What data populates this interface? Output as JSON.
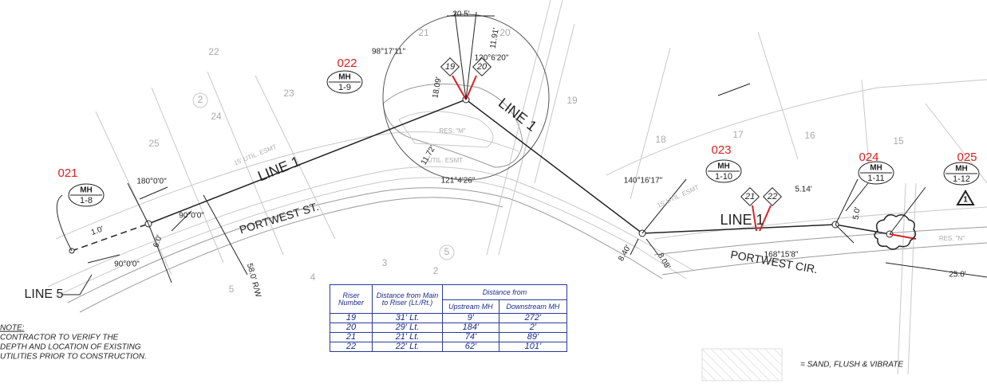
{
  "manholes": [
    {
      "id": "021",
      "type": "MH",
      "label": "1-8"
    },
    {
      "id": "022",
      "type": "MH",
      "label": "1-9"
    },
    {
      "id": "023",
      "type": "MH",
      "label": "1-10"
    },
    {
      "id": "024",
      "type": "MH",
      "label": "1-11"
    },
    {
      "id": "025",
      "type": "MH",
      "label": "1-12"
    }
  ],
  "line_labels": [
    "LINE 1",
    "LINE 1",
    "LINE 1",
    "LINE 5"
  ],
  "streets": [
    "PORTWEST ST.",
    "PORTWEST CIR."
  ],
  "dimensions": [
    "20.5'",
    "98°17'11\"",
    "120°6'20\"",
    "11.91'",
    "18.09'",
    "11.72'",
    "121°4'26\"",
    "180°0'0\"",
    "90°0'0\"",
    "90°0'0\"",
    "1.0'",
    "6.0'",
    "58.0' R/W",
    "140°16'17\"",
    "5.14'",
    "5.0'",
    "168°15'8\"",
    "25.0'",
    "8.40'",
    "8.08'"
  ],
  "risers": [
    "19",
    "20",
    "21",
    "22"
  ],
  "lots": [
    "22",
    "21",
    "20",
    "19",
    "23",
    "24",
    "25",
    "2",
    "18",
    "17",
    "16",
    "15",
    "3",
    "2",
    "4",
    "5",
    "5"
  ],
  "easements": [
    "15' UTIL. ESMT",
    "UTIL. ESMT",
    "RES. \"M\"",
    "RES. \"N\"",
    "15' UTIL. ESMT"
  ],
  "revision": "1",
  "note": {
    "title": "NOTE:",
    "lines": [
      "CONTRACTOR TO VERIFY THE",
      "DEPTH AND LOCATION OF EXISTING",
      "UTILITIES PRIOR TO CONSTRUCTION."
    ]
  },
  "legend": "= SAND, FLUSH & VIBRATE",
  "table": {
    "headers": {
      "riser": "Riser Number",
      "main": "Distance from Main to Riser (Lt./Rt.)",
      "from": "Distance from",
      "up": "Upstream MH",
      "down": "Downstream MH"
    },
    "rows": [
      [
        "19",
        "31' Lt.",
        "9'",
        "272'"
      ],
      [
        "20",
        "29' Lt.",
        "184'",
        "2'"
      ],
      [
        "21",
        "21' Lt.",
        "74'",
        "89'"
      ],
      [
        "22",
        "22' Lt.",
        "62'",
        "101'"
      ]
    ]
  }
}
